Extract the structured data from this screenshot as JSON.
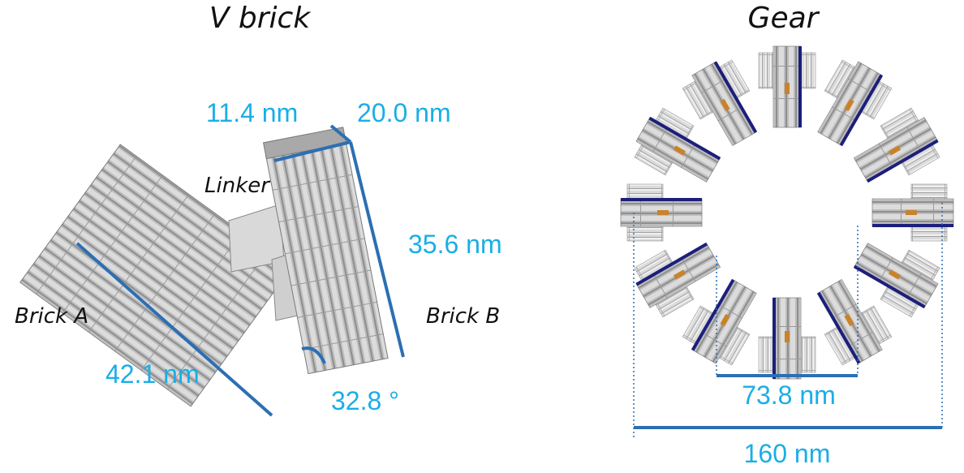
{
  "titles": {
    "left": "V brick",
    "right": "Gear"
  },
  "labels": {
    "linker": "Linker",
    "brick_a": "Brick A",
    "brick_b": "Brick B"
  },
  "dimensions": {
    "width_a": "11.4 nm",
    "width_b": "20.0 nm",
    "height_b": "35.6 nm",
    "length_a": "42.1 nm",
    "angle": "32.8 °",
    "inner_diameter": "73.8 nm",
    "outer_diameter": "160 nm"
  },
  "colors": {
    "dimension_text": "#19aee6",
    "dimension_line": "#2c6fb3",
    "helix_gray": "#c4c4c4",
    "edge_navy": "#1c1f7a",
    "linker_orange": "#c9822b"
  }
}
